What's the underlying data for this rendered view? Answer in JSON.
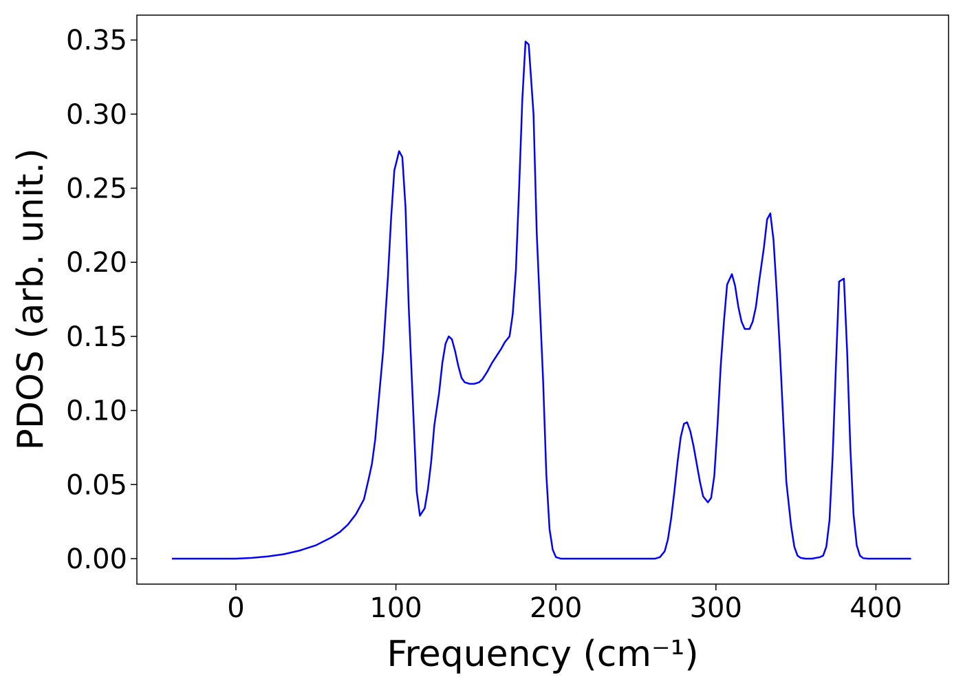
{
  "chart_data": {
    "type": "line",
    "xlabel": "Frequency (cm⁻¹)",
    "ylabel": "PDOS (arb. unit.)",
    "color": "#0000ff",
    "x": [
      -40,
      -20,
      0,
      10,
      20,
      30,
      40,
      50,
      60,
      65,
      70,
      75,
      80,
      83,
      85,
      87,
      89,
      92,
      95,
      97,
      99,
      102,
      104,
      106,
      108,
      111,
      113,
      115,
      118,
      120,
      122,
      124,
      127,
      129,
      131,
      133,
      135,
      137,
      139,
      141,
      143,
      146,
      149,
      152,
      154,
      157,
      160,
      163,
      166,
      168,
      171,
      173,
      175,
      177,
      179,
      181,
      183,
      186,
      188,
      190,
      192,
      194,
      196,
      198,
      200,
      203,
      230,
      262,
      265,
      268,
      270,
      272,
      274,
      276,
      278,
      280,
      282,
      284,
      286,
      288,
      290,
      292,
      295,
      297,
      299,
      301,
      303,
      305,
      307,
      310,
      312,
      314,
      316,
      318,
      321,
      323,
      325,
      327,
      330,
      332,
      334,
      336,
      338,
      340,
      342,
      344,
      347,
      349,
      351,
      353,
      356,
      360,
      365,
      367,
      369,
      371,
      373,
      375,
      377,
      380,
      382,
      384,
      386,
      388,
      390,
      392,
      395,
      422
    ],
    "values": [
      0,
      0,
      0,
      0.0005,
      0.0015,
      0.003,
      0.0055,
      0.009,
      0.0145,
      0.018,
      0.023,
      0.03,
      0.04,
      0.054,
      0.064,
      0.08,
      0.104,
      0.14,
      0.19,
      0.23,
      0.262,
      0.275,
      0.271,
      0.237,
      0.17,
      0.095,
      0.045,
      0.029,
      0.034,
      0.047,
      0.065,
      0.09,
      0.112,
      0.132,
      0.145,
      0.15,
      0.148,
      0.14,
      0.13,
      0.122,
      0.119,
      0.118,
      0.118,
      0.119,
      0.121,
      0.126,
      0.132,
      0.137,
      0.142,
      0.146,
      0.15,
      0.165,
      0.195,
      0.25,
      0.31,
      0.349,
      0.347,
      0.3,
      0.22,
      0.17,
      0.12,
      0.057,
      0.02,
      0.006,
      0.001,
      0,
      0,
      0,
      0.001,
      0.005,
      0.013,
      0.027,
      0.045,
      0.065,
      0.082,
      0.091,
      0.092,
      0.086,
      0.076,
      0.064,
      0.052,
      0.042,
      0.038,
      0.041,
      0.056,
      0.09,
      0.13,
      0.16,
      0.185,
      0.192,
      0.184,
      0.17,
      0.16,
      0.155,
      0.155,
      0.16,
      0.17,
      0.187,
      0.21,
      0.229,
      0.233,
      0.215,
      0.18,
      0.14,
      0.095,
      0.052,
      0.022,
      0.008,
      0.002,
      0.0005,
      0,
      0,
      0.001,
      0.002,
      0.008,
      0.026,
      0.07,
      0.13,
      0.187,
      0.189,
      0.14,
      0.075,
      0.03,
      0.009,
      0.002,
      0.0003,
      0,
      0
    ],
    "xlim": [
      -61.9,
      445.4
    ],
    "xticks": [
      0,
      100,
      200,
      300,
      400
    ],
    "ylim": [
      -0.0172,
      0.3668
    ],
    "yticks": [
      {
        "value": 0,
        "label": "0.00"
      },
      {
        "value": 0.05,
        "label": "0.05"
      },
      {
        "value": 0.1,
        "label": "0.10"
      },
      {
        "value": 0.15,
        "label": "0.15"
      },
      {
        "value": 0.2,
        "label": "0.20"
      },
      {
        "value": 0.25,
        "label": "0.25"
      },
      {
        "value": 0.3,
        "label": "0.30"
      },
      {
        "value": 0.35,
        "label": "0.35"
      }
    ],
    "grid": false
  }
}
